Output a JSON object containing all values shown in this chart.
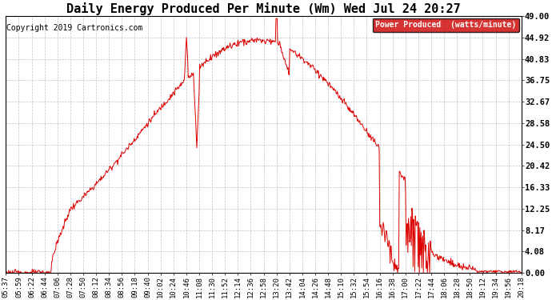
{
  "title": "Daily Energy Produced Per Minute (Wm) Wed Jul 24 20:27",
  "copyright": "Copyright 2019 Cartronics.com",
  "legend_label": "Power Produced  (watts/minute)",
  "ymin": 0.0,
  "ymax": 49.0,
  "yticks": [
    0.0,
    4.08,
    8.17,
    12.25,
    16.33,
    20.42,
    24.5,
    28.58,
    32.67,
    36.75,
    40.83,
    44.92,
    49.0
  ],
  "line_color": "#dd0000",
  "bg_color": "#ffffff",
  "grid_color": "#bbbbbb",
  "legend_bg": "#cc0000",
  "legend_text_color": "#ffffff",
  "title_fontsize": 11,
  "copyright_fontsize": 7,
  "xtick_fontsize": 6.5,
  "ytick_fontsize": 7.5,
  "x_labels": [
    "05:37",
    "05:59",
    "06:22",
    "06:44",
    "07:06",
    "07:28",
    "07:50",
    "08:12",
    "08:34",
    "08:56",
    "09:18",
    "09:40",
    "10:02",
    "10:24",
    "10:46",
    "11:08",
    "11:30",
    "11:52",
    "12:14",
    "12:36",
    "12:58",
    "13:20",
    "13:42",
    "14:04",
    "14:26",
    "14:48",
    "15:10",
    "15:32",
    "15:54",
    "16:16",
    "16:38",
    "17:00",
    "17:22",
    "17:44",
    "18:06",
    "18:28",
    "18:50",
    "19:12",
    "19:34",
    "19:56",
    "20:18"
  ]
}
